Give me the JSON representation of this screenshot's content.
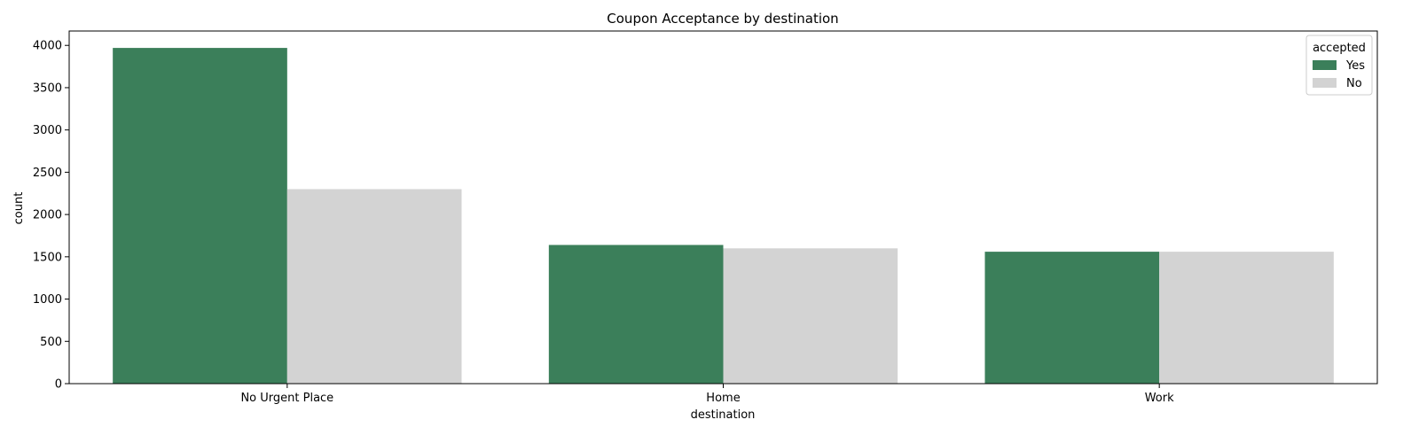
{
  "chart_data": {
    "type": "bar",
    "title": "Coupon Acceptance by destination",
    "xlabel": "destination",
    "ylabel": "count",
    "categories": [
      "No Urgent Place",
      "Home",
      "Work"
    ],
    "series": [
      {
        "name": "Yes",
        "color": "#3b7f5a",
        "values": [
          3970,
          1640,
          1560
        ]
      },
      {
        "name": "No",
        "color": "#d3d3d3",
        "values": [
          2300,
          1600,
          1560
        ]
      }
    ],
    "ylim": [
      0,
      4170
    ],
    "yticks": [
      0,
      500,
      1000,
      1500,
      2000,
      2500,
      3000,
      3500,
      4000
    ],
    "legend": {
      "title": "accepted",
      "placement": "top-right"
    },
    "grid": false
  }
}
